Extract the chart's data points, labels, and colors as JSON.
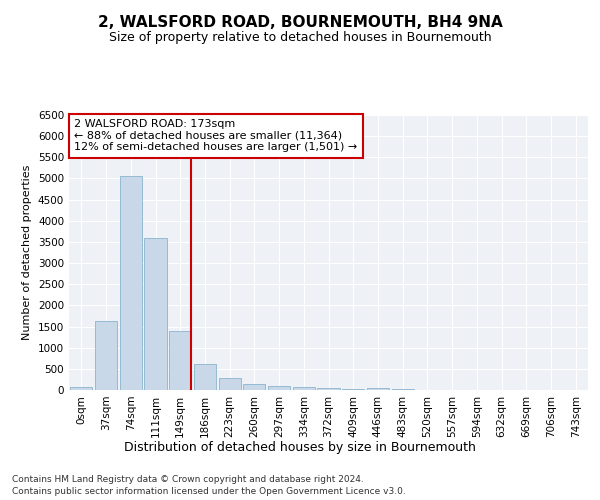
{
  "title": "2, WALSFORD ROAD, BOURNEMOUTH, BH4 9NA",
  "subtitle": "Size of property relative to detached houses in Bournemouth",
  "xlabel": "Distribution of detached houses by size in Bournemouth",
  "ylabel": "Number of detached properties",
  "footer_line1": "Contains HM Land Registry data © Crown copyright and database right 2024.",
  "footer_line2": "Contains public sector information licensed under the Open Government Licence v3.0.",
  "bar_labels": [
    "0sqm",
    "37sqm",
    "74sqm",
    "111sqm",
    "149sqm",
    "186sqm",
    "223sqm",
    "260sqm",
    "297sqm",
    "334sqm",
    "372sqm",
    "409sqm",
    "446sqm",
    "483sqm",
    "520sqm",
    "557sqm",
    "594sqm",
    "632sqm",
    "669sqm",
    "706sqm",
    "743sqm"
  ],
  "bar_values": [
    70,
    1640,
    5050,
    3600,
    1400,
    620,
    290,
    140,
    100,
    75,
    50,
    30,
    55,
    15,
    10,
    5,
    5,
    5,
    5,
    5,
    5
  ],
  "bar_color": "#c8d8e8",
  "bar_edge_color": "#7aaac8",
  "ylim": [
    0,
    6500
  ],
  "yticks": [
    0,
    500,
    1000,
    1500,
    2000,
    2500,
    3000,
    3500,
    4000,
    4500,
    5000,
    5500,
    6000,
    6500
  ],
  "vline_x": 4.425,
  "vline_color": "#cc0000",
  "annotation_text_line1": "2 WALSFORD ROAD: 173sqm",
  "annotation_text_line2": "← 88% of detached houses are smaller (11,364)",
  "annotation_text_line3": "12% of semi-detached houses are larger (1,501) →",
  "annotation_box_color": "#ffffff",
  "annotation_box_edge_color": "#cc0000",
  "bg_color": "#eef2f7",
  "grid_color": "#ffffff",
  "title_fontsize": 11,
  "subtitle_fontsize": 9,
  "ylabel_fontsize": 8,
  "xlabel_fontsize": 9,
  "tick_fontsize": 7.5,
  "annotation_fontsize": 8,
  "footer_fontsize": 6.5
}
